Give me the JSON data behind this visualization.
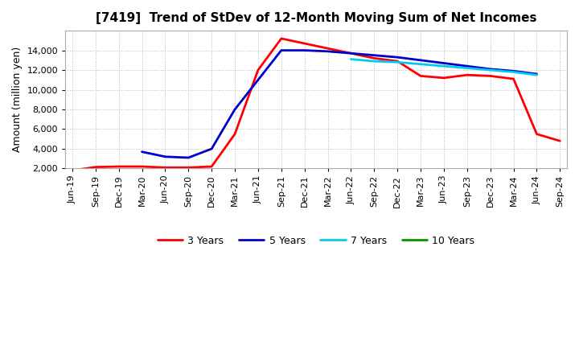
{
  "title": "[7419]  Trend of StDev of 12-Month Moving Sum of Net Incomes",
  "ylabel": "Amount (million yen)",
  "background_color": "#ffffff",
  "grid_color": "#bbbbbb",
  "x_labels": [
    "Jun-19",
    "Sep-19",
    "Dec-19",
    "Mar-20",
    "Jun-20",
    "Sep-20",
    "Dec-20",
    "Mar-21",
    "Jun-21",
    "Sep-21",
    "Dec-21",
    "Mar-22",
    "Jun-22",
    "Sep-22",
    "Dec-22",
    "Mar-23",
    "Jun-23",
    "Sep-23",
    "Dec-23",
    "Mar-24",
    "Jun-24",
    "Sep-24"
  ],
  "series": {
    "3 Years": {
      "color": "#ff0000",
      "linewidth": 2.0,
      "data": [
        1800,
        2150,
        2200,
        2200,
        2100,
        2100,
        2200,
        5500,
        12000,
        15200,
        14700,
        14200,
        13700,
        13200,
        12900,
        11400,
        11200,
        11500,
        11400,
        11100,
        5500,
        4800
      ]
    },
    "5 Years": {
      "color": "#0000cc",
      "linewidth": 2.0,
      "data": [
        null,
        null,
        null,
        3700,
        3200,
        3100,
        4000,
        8000,
        11000,
        14000,
        14000,
        13900,
        13700,
        13500,
        13300,
        13000,
        12700,
        12400,
        12100,
        11900,
        11600,
        null
      ]
    },
    "7 Years": {
      "color": "#00ccee",
      "linewidth": 2.0,
      "data": [
        null,
        null,
        null,
        null,
        null,
        null,
        null,
        null,
        null,
        null,
        null,
        null,
        13100,
        12900,
        12800,
        12600,
        12400,
        12200,
        12000,
        11800,
        11500,
        null
      ]
    },
    "10 Years": {
      "color": "#009900",
      "linewidth": 2.0,
      "data": [
        null,
        null,
        null,
        null,
        null,
        null,
        null,
        null,
        null,
        null,
        null,
        null,
        null,
        null,
        null,
        null,
        null,
        null,
        null,
        null,
        null,
        null
      ]
    }
  },
  "ylim": [
    2000,
    16000
  ],
  "yticks": [
    2000,
    4000,
    6000,
    8000,
    10000,
    12000,
    14000
  ],
  "legend_order": [
    "3 Years",
    "5 Years",
    "7 Years",
    "10 Years"
  ]
}
